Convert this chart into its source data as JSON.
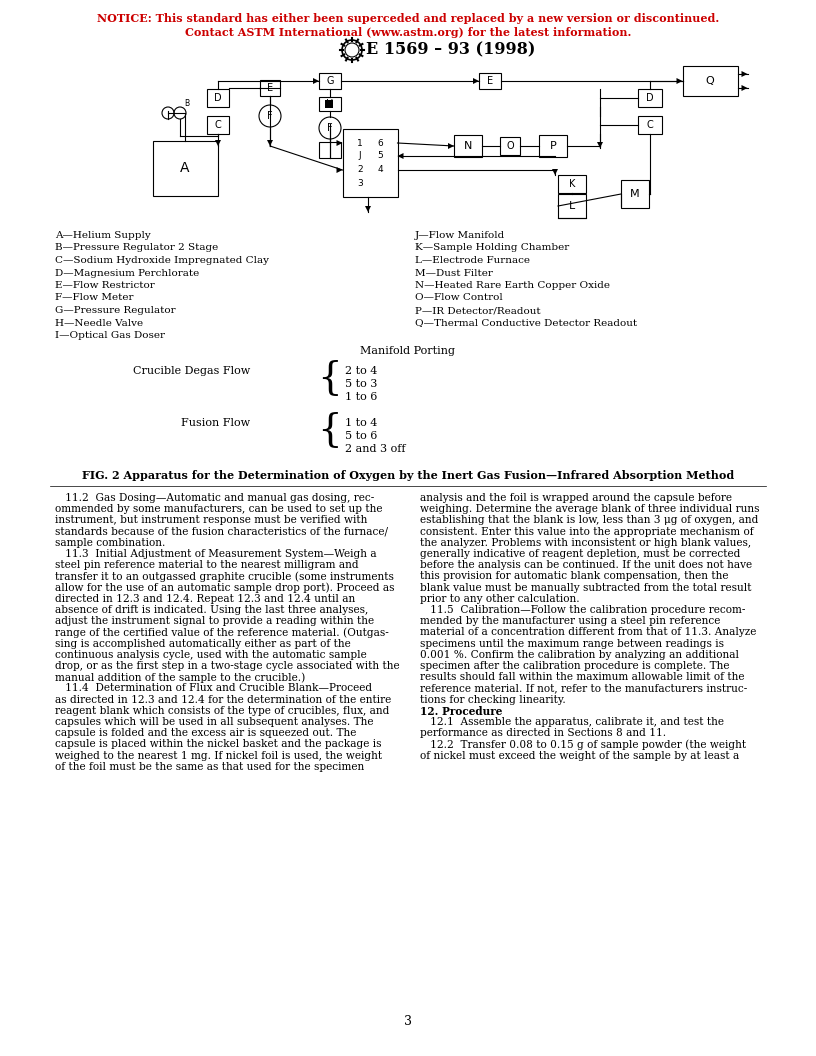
{
  "notice_line1": "NOTICE: This standard has either been superceded and replaced by a new version or discontinued.",
  "notice_line2": "Contact ASTM International (www.astm.org) for the latest information.",
  "notice_color": "#cc0000",
  "title": "E 1569 – 93 (1998)",
  "fig_caption": "FIG. 2 Apparatus for the Determination of Oxygen by the Inert Gas Fusion—Infrared Absorption Method",
  "legend_left": [
    "A—Helium Supply",
    "B—Pressure Regulator 2 Stage",
    "C—Sodium Hydroxide Impregnated Clay",
    "D—Magnesium Perchlorate",
    "E—Flow Restrictor",
    "F—Flow Meter",
    "G—Pressure Regulator",
    "H—Needle Valve",
    "I—Optical Gas Doser"
  ],
  "legend_right": [
    "J—Flow Manifold",
    "K—Sample Holding Chamber",
    "L—Electrode Furnace",
    "M—Dust Filter",
    "N—Heated Rare Earth Copper Oxide",
    "O—Flow Control",
    "P—IR Detector/Readout",
    "Q—Thermal Conductive Detector Readout"
  ],
  "manifold_label": "Manifold Porting",
  "crucible_label": "Crucible Degas Flow",
  "crucible_ports": [
    "2 to 4",
    "5 to 3",
    "1 to 6"
  ],
  "fusion_label": "Fusion Flow",
  "fusion_ports": [
    "1 to 4",
    "5 to 6",
    "2 and 3 off"
  ],
  "body_col1": [
    "   11.2  Gas Dosing—Automatic and manual gas dosing, rec-",
    "ommended by some manufacturers, can be used to set up the",
    "instrument, but instrument response must be verified with",
    "standards because of the fusion characteristics of the furnace/",
    "sample combination.",
    "   11.3  Initial Adjustment of Measurement System—Weigh a",
    "steel pin reference material to the nearest milligram and",
    "transfer it to an outgassed graphite crucible (some instruments",
    "allow for the use of an automatic sample drop port). Proceed as",
    "directed in 12.3 and 12.4. Repeat 12.3 and 12.4 until an",
    "absence of drift is indicated. Using the last three analyses,",
    "adjust the instrument signal to provide a reading within the",
    "range of the certified value of the reference material. (Outgas-",
    "sing is accomplished automatically either as part of the",
    "continuous analysis cycle, used with the automatic sample",
    "drop, or as the first step in a two-stage cycle associated with the",
    "manual addition of the sample to the crucible.)",
    "   11.4  Determination of Flux and Crucible Blank—Proceed",
    "as directed in 12.3 and 12.4 for the determination of the entire",
    "reagent blank which consists of the type of crucibles, flux, and",
    "capsules which will be used in all subsequent analyses. The",
    "capsule is folded and the excess air is squeezed out. The",
    "capsule is placed within the nickel basket and the package is",
    "weighed to the nearest 1 mg. If nickel foil is used, the weight",
    "of the foil must be the same as that used for the specimen"
  ],
  "body_col2": [
    "analysis and the foil is wrapped around the capsule before",
    "weighing. Determine the average blank of three individual runs",
    "establishing that the blank is low, less than 3 μg of oxygen, and",
    "consistent. Enter this value into the appropriate mechanism of",
    "the analyzer. Problems with inconsistent or high blank values,",
    "generally indicative of reagent depletion, must be corrected",
    "before the analysis can be continued. If the unit does not have",
    "this provision for automatic blank compensation, then the",
    "blank value must be manually subtracted from the total result",
    "prior to any other calculation.",
    "   11.5  Calibration—Follow the calibration procedure recom-",
    "mended by the manufacturer using a steel pin reference",
    "material of a concentration different from that of 11.3. Analyze",
    "specimens until the maximum range between readings is",
    "0.001 %. Confirm the calibration by analyzing an additional",
    "specimen after the calibration procedure is complete. The",
    "results should fall within the maximum allowable limit of the",
    "reference material. If not, refer to the manufacturers instruc-",
    "tions for checking linearity.",
    "12. Procedure",
    "   12.1  Assemble the apparatus, calibrate it, and test the",
    "performance as directed in Sections 8 and 11.",
    "   12.2  Transfer 0.08 to 0.15 g of sample powder (the weight",
    "of nickel must exceed the weight of the sample by at least a"
  ],
  "page_number": "3",
  "background_color": "#ffffff",
  "text_color": "#000000"
}
